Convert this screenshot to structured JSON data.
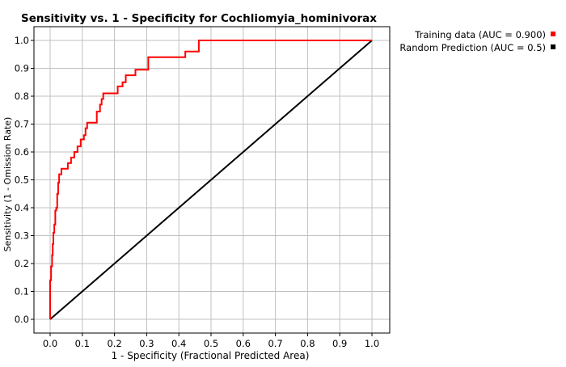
{
  "chart_data": {
    "type": "line",
    "title": "Sensitivity vs. 1 - Specificity for Cochliomyia_hominivorax",
    "xlabel": "1 - Specificity  (Fractional Predicted Area)",
    "ylabel": "Sensitivity (1 - Omission Rate)",
    "xlim": [
      0,
      1
    ],
    "ylim": [
      0,
      1
    ],
    "x_ticks": [
      "0.0",
      "0.1",
      "0.2",
      "0.3",
      "0.4",
      "0.5",
      "0.6",
      "0.7",
      "0.8",
      "0.9",
      "1.0"
    ],
    "y_ticks": [
      "0.0",
      "0.1",
      "0.2",
      "0.3",
      "0.4",
      "0.5",
      "0.6",
      "0.7",
      "0.8",
      "0.9",
      "1.0"
    ],
    "grid": true,
    "legend_position": "top-right",
    "series": [
      {
        "name": "Training data (AUC = 0.900)",
        "color": "#ff0000",
        "x": [
          0.0,
          0.0,
          0.003,
          0.003,
          0.006,
          0.006,
          0.008,
          0.008,
          0.01,
          0.01,
          0.013,
          0.013,
          0.016,
          0.016,
          0.019,
          0.019,
          0.022,
          0.022,
          0.025,
          0.025,
          0.028,
          0.028,
          0.031,
          0.031,
          0.035,
          0.035,
          0.055,
          0.055,
          0.065,
          0.065,
          0.075,
          0.075,
          0.085,
          0.085,
          0.095,
          0.095,
          0.105,
          0.105,
          0.11,
          0.11,
          0.115,
          0.115,
          0.12,
          0.12,
          0.145,
          0.145,
          0.155,
          0.155,
          0.16,
          0.16,
          0.165,
          0.165,
          0.21,
          0.21,
          0.225,
          0.225,
          0.235,
          0.235,
          0.265,
          0.265,
          0.305,
          0.305,
          0.42,
          0.42,
          0.462,
          0.462,
          1.0
        ],
        "y": [
          0.0,
          0.14,
          0.14,
          0.19,
          0.19,
          0.23,
          0.23,
          0.27,
          0.27,
          0.31,
          0.31,
          0.34,
          0.34,
          0.39,
          0.39,
          0.4,
          0.4,
          0.45,
          0.45,
          0.49,
          0.49,
          0.52,
          0.52,
          0.52,
          0.52,
          0.54,
          0.54,
          0.56,
          0.56,
          0.58,
          0.58,
          0.6,
          0.6,
          0.62,
          0.62,
          0.645,
          0.645,
          0.66,
          0.66,
          0.685,
          0.685,
          0.705,
          0.705,
          0.705,
          0.705,
          0.745,
          0.745,
          0.77,
          0.77,
          0.79,
          0.79,
          0.81,
          0.81,
          0.835,
          0.835,
          0.85,
          0.85,
          0.875,
          0.875,
          0.895,
          0.895,
          0.94,
          0.94,
          0.96,
          0.96,
          1.0,
          1.0
        ]
      },
      {
        "name": "Random Prediction (AUC = 0.5)",
        "color": "#000000",
        "x": [
          0.0,
          1.0
        ],
        "y": [
          0.0,
          1.0
        ]
      }
    ]
  }
}
